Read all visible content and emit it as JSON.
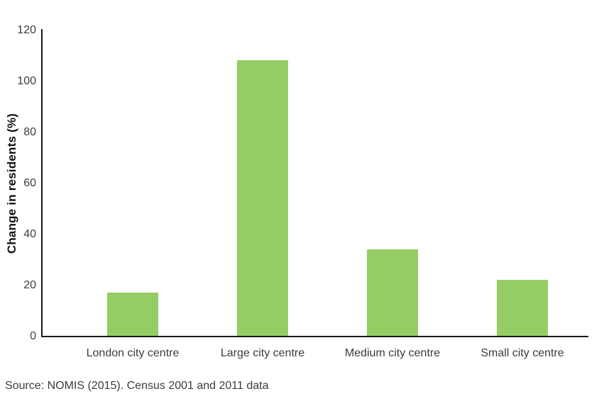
{
  "chart_data": {
    "type": "bar",
    "title": "",
    "categories": [
      "London city centre",
      "Large city centre",
      "Medium city centre",
      "Small city centre"
    ],
    "values": [
      17,
      108,
      34,
      22
    ],
    "xlabel": "",
    "ylabel": "Change in residents (%)",
    "yticks": [
      0,
      20,
      40,
      60,
      80,
      100,
      120
    ],
    "ylim": [
      0,
      120
    ],
    "grid": false,
    "legend": false,
    "bar_color": "#95CD65"
  },
  "source_note": "Source: NOMIS (2015). Census 2001 and 2011 data",
  "colors": {
    "bar": "#95CD65",
    "axis": "#1a1a1a",
    "text": "#3c3c3c"
  }
}
